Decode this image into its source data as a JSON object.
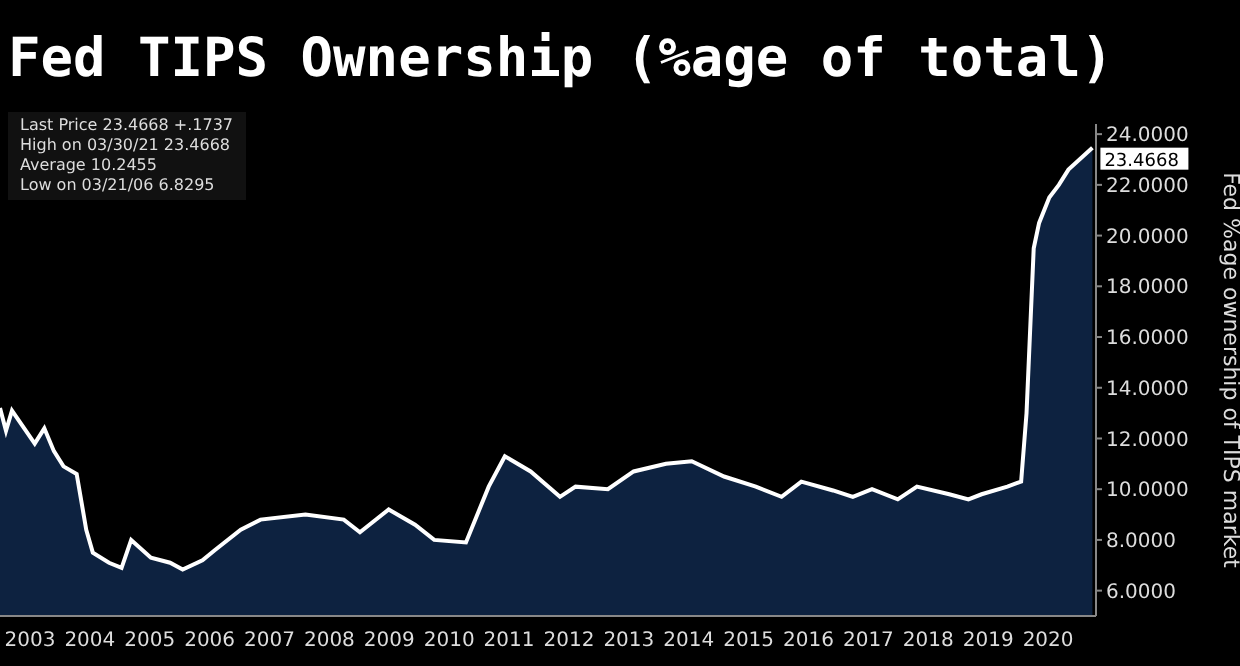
{
  "chart_data": {
    "type": "area",
    "title": "Fed TIPS Ownership (%age of total)",
    "ylabel": "Fed %age ownership of TIPS market",
    "annotations": [
      "Last Price 23.4668 +.1737",
      "High on 03/30/21 23.4668",
      "Average 10.2455",
      "Low on 03/21/06 6.8295",
      {
        "text": "23.4668",
        "x": 2021.24,
        "y": 23.4668
      }
    ],
    "series": [
      {
        "color": "#0d2240",
        "x": [
          2003.0,
          2003.1,
          2003.2,
          2003.58,
          2003.74,
          2003.9,
          2004.06,
          2004.28,
          2004.44,
          2004.55,
          2004.82,
          2005.03,
          2005.19,
          2005.52,
          2005.84,
          2006.05,
          2006.38,
          2006.59,
          2007.02,
          2007.35,
          2008.1,
          2008.74,
          2009.01,
          2009.49,
          2009.93,
          2010.25,
          2010.78,
          2011.16,
          2011.43,
          2011.86,
          2012.35,
          2012.61,
          2013.15,
          2013.58,
          2014.12,
          2014.55,
          2015.09,
          2015.62,
          2016.05,
          2016.38,
          2016.91,
          2017.24,
          2017.56,
          2017.99,
          2018.31,
          2018.85,
          2019.17,
          2019.39,
          2019.82,
          2020.05,
          2020.14,
          2020.26,
          2020.35,
          2020.52,
          2020.68,
          2020.84,
          2021.24
        ],
        "values": [
          13.2,
          12.3,
          13.1,
          11.8,
          12.4,
          11.5,
          10.9,
          10.6,
          8.4,
          7.5,
          7.1,
          6.9,
          8.0,
          7.3,
          7.1,
          6.83,
          7.2,
          7.6,
          8.4,
          8.8,
          9.0,
          8.8,
          8.3,
          9.2,
          8.6,
          8.0,
          7.9,
          10.1,
          11.3,
          10.7,
          9.7,
          10.1,
          10.0,
          10.7,
          11.0,
          11.1,
          10.5,
          10.1,
          9.7,
          10.3,
          9.95,
          9.7,
          10.0,
          9.6,
          10.1,
          9.8,
          9.6,
          9.8,
          10.1,
          10.3,
          13.0,
          19.5,
          20.5,
          21.5,
          22.0,
          22.6,
          23.4668
        ]
      }
    ],
    "xlim": [
      2003,
      2021.3
    ],
    "xticks": [
      {
        "value": 2003.5,
        "label": "2003"
      },
      {
        "value": 2004.5,
        "label": "2004"
      },
      {
        "value": 2005.5,
        "label": "2005"
      },
      {
        "value": 2006.5,
        "label": "2006"
      },
      {
        "value": 2007.5,
        "label": "2007"
      },
      {
        "value": 2008.5,
        "label": "2008"
      },
      {
        "value": 2009.5,
        "label": "2009"
      },
      {
        "value": 2010.5,
        "label": "2010"
      },
      {
        "value": 2011.5,
        "label": "2011"
      },
      {
        "value": 2012.5,
        "label": "2012"
      },
      {
        "value": 2013.5,
        "label": "2013"
      },
      {
        "value": 2014.5,
        "label": "2014"
      },
      {
        "value": 2015.5,
        "label": "2015"
      },
      {
        "value": 2016.5,
        "label": "2016"
      },
      {
        "value": 2017.5,
        "label": "2017"
      },
      {
        "value": 2018.5,
        "label": "2018"
      },
      {
        "value": 2019.5,
        "label": "2019"
      },
      {
        "value": 2020.5,
        "label": "2020"
      }
    ],
    "ylim": [
      5,
      24.4
    ],
    "yticks": [
      {
        "value": 6,
        "label": "6.0000"
      },
      {
        "value": 8,
        "label": "8.0000"
      },
      {
        "value": 10,
        "label": "10.0000"
      },
      {
        "value": 12,
        "label": "12.0000"
      },
      {
        "value": 14,
        "label": "14.0000"
      },
      {
        "value": 16,
        "label": "16.0000"
      },
      {
        "value": 18,
        "label": "18.0000"
      },
      {
        "value": 20,
        "label": "20.0000"
      },
      {
        "value": 22,
        "label": "22.0000"
      },
      {
        "value": 24,
        "label": "24.0000"
      }
    ],
    "grid": false
  }
}
